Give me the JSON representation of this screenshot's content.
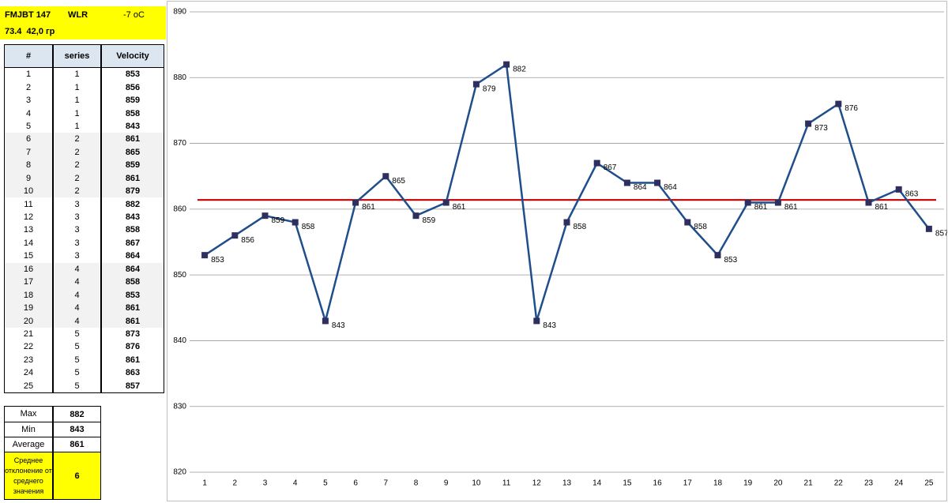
{
  "header": {
    "rows": [
      [
        "FMJBT 147",
        "WLR",
        "-7 оС"
      ],
      [
        "73.4  42,0 гр"
      ]
    ]
  },
  "table": {
    "columns": [
      "#",
      "series",
      "Velocity"
    ],
    "rows": [
      [
        1,
        1,
        853
      ],
      [
        2,
        1,
        856
      ],
      [
        3,
        1,
        859
      ],
      [
        4,
        1,
        858
      ],
      [
        5,
        1,
        843
      ],
      [
        6,
        2,
        861
      ],
      [
        7,
        2,
        865
      ],
      [
        8,
        2,
        859
      ],
      [
        9,
        2,
        861
      ],
      [
        10,
        2,
        879
      ],
      [
        11,
        3,
        882
      ],
      [
        12,
        3,
        843
      ],
      [
        13,
        3,
        858
      ],
      [
        14,
        3,
        867
      ],
      [
        15,
        3,
        864
      ],
      [
        16,
        4,
        864
      ],
      [
        17,
        4,
        858
      ],
      [
        18,
        4,
        853
      ],
      [
        19,
        4,
        861
      ],
      [
        20,
        4,
        861
      ],
      [
        21,
        5,
        873
      ],
      [
        22,
        5,
        876
      ],
      [
        23,
        5,
        861
      ],
      [
        24,
        5,
        863
      ],
      [
        25,
        5,
        857
      ]
    ]
  },
  "stats": {
    "rows": [
      [
        "Max",
        882
      ],
      [
        "Min",
        843
      ],
      [
        "Average",
        861
      ],
      [
        "Среднее отклонение от среднего значения",
        6
      ]
    ]
  },
  "chart_data": {
    "type": "line",
    "categories": [
      "1",
      "2",
      "3",
      "4",
      "5",
      "6",
      "7",
      "8",
      "9",
      "10",
      "11",
      "12",
      "13",
      "14",
      "15",
      "16",
      "17",
      "18",
      "19",
      "20",
      "21",
      "22",
      "23",
      "24",
      "25"
    ],
    "series": [
      {
        "color": "#1f4e8c",
        "marker_color": "#2f2f5f",
        "values": [
          853,
          856,
          859,
          858,
          843,
          861,
          865,
          859,
          861,
          879,
          882,
          843,
          858,
          867,
          864,
          864,
          858,
          853,
          861,
          861,
          873,
          876,
          861,
          863,
          857
        ]
      }
    ],
    "reference_line": {
      "value": 861.4,
      "color": "#c00000"
    },
    "ylim": [
      820,
      890
    ],
    "yticks": [
      820,
      830,
      840,
      850,
      860,
      870,
      880,
      890
    ],
    "grid": true
  }
}
